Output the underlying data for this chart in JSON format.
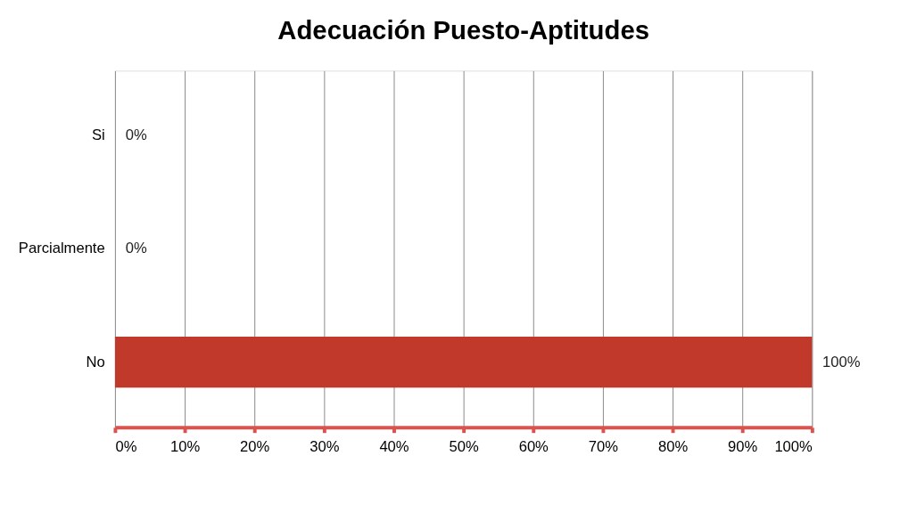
{
  "chart_data": {
    "type": "bar",
    "orientation": "horizontal",
    "title": "Adecuación Puesto-Aptitudes",
    "categories": [
      "Si",
      "Parcialmente",
      "No"
    ],
    "values": [
      0,
      0,
      100
    ],
    "color": "#c0392b",
    "value_labels": [
      "0%",
      "0%",
      "100%"
    ],
    "xlim": [
      0,
      100
    ],
    "xticks": [
      {
        "value": 0,
        "label": "0%"
      },
      {
        "value": 10,
        "label": "10%"
      },
      {
        "value": 20,
        "label": "20%"
      },
      {
        "value": 30,
        "label": "30%"
      },
      {
        "value": 40,
        "label": "40%"
      },
      {
        "value": 50,
        "label": "50%"
      },
      {
        "value": 60,
        "label": "60%"
      },
      {
        "value": 70,
        "label": "70%"
      },
      {
        "value": 80,
        "label": "80%"
      },
      {
        "value": 90,
        "label": "90%"
      },
      {
        "value": 100,
        "label": "100%"
      }
    ],
    "grid": "x"
  }
}
